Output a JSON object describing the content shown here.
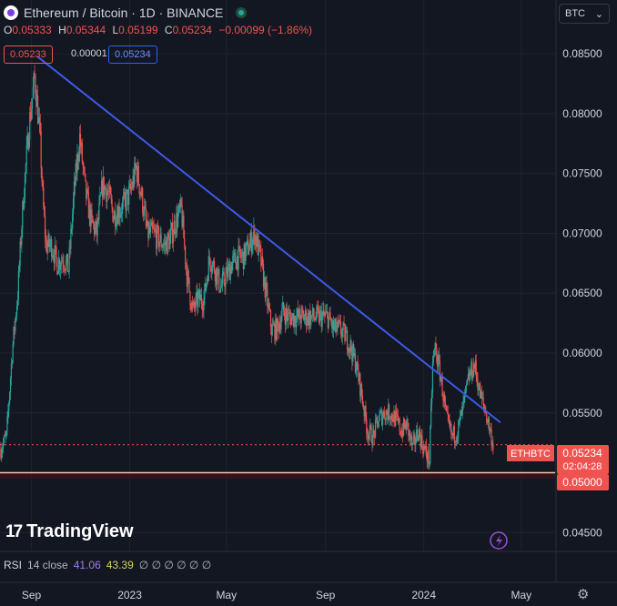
{
  "header": {
    "title": "Ethereum / Bitcoin · 1D · BINANCE",
    "ohlc": [
      {
        "key": "O",
        "value": "0.05333"
      },
      {
        "key": "H",
        "value": "0.05344"
      },
      {
        "key": "L",
        "value": "0.05199"
      },
      {
        "key": "C",
        "value": "0.05234"
      }
    ],
    "change": "−0.00099 (−1.86%)",
    "bid": "0.05233",
    "spread": "0.00001",
    "ask": "0.05234"
  },
  "currency_selector": {
    "value": "BTC",
    "arrow": "⌄"
  },
  "branding": {
    "mark": "17",
    "name": "TradingView"
  },
  "rsi": {
    "label": "RSI",
    "params": "14 close",
    "value1": "41.06",
    "value2": "43.39",
    "placeholders": "∅ ∅ ∅ ∅ ∅ ∅"
  },
  "price_tags": {
    "symbol": "ETHBTC",
    "last": "0.05234",
    "countdown": "02:04:28",
    "support": "0.05000"
  },
  "colors": {
    "background": "#131722",
    "up": "#26a69a",
    "down": "#ef5350",
    "trendline": "#3d5ae8",
    "support_line": "#f0c9a4",
    "axis_text": "#d1d4dc"
  },
  "icons": [
    "flash-icon",
    "gear-icon"
  ],
  "chart_data": {
    "type": "candlestick",
    "x_ticks": [
      "Sep",
      "2023",
      "May",
      "Sep",
      "2024",
      "May"
    ],
    "y_ticks": [
      "0.08500",
      "0.08000",
      "0.07500",
      "0.07000",
      "0.06500",
      "0.06000",
      "0.05500",
      "0.05000",
      "0.04500"
    ],
    "ylim": [
      0.0435,
      0.0895
    ],
    "xlim": [
      "2022-07-24",
      "2024-06-12"
    ],
    "grid": true,
    "series_close": [
      {
        "date": "2022-07-25",
        "close": 0.052
      },
      {
        "date": "2022-08-01",
        "close": 0.053
      },
      {
        "date": "2022-08-08",
        "close": 0.06
      },
      {
        "date": "2022-08-15",
        "close": 0.065
      },
      {
        "date": "2022-08-22",
        "close": 0.073
      },
      {
        "date": "2022-08-29",
        "close": 0.079
      },
      {
        "date": "2022-09-05",
        "close": 0.083
      },
      {
        "date": "2022-09-08",
        "close": 0.081
      },
      {
        "date": "2022-09-12",
        "close": 0.0775
      },
      {
        "date": "2022-09-15",
        "close": 0.073
      },
      {
        "date": "2022-09-19",
        "close": 0.069
      },
      {
        "date": "2022-09-26",
        "close": 0.069
      },
      {
        "date": "2022-10-03",
        "close": 0.0675
      },
      {
        "date": "2022-10-10",
        "close": 0.068
      },
      {
        "date": "2022-10-17",
        "close": 0.067
      },
      {
        "date": "2022-10-24",
        "close": 0.0735
      },
      {
        "date": "2022-10-31",
        "close": 0.078
      },
      {
        "date": "2022-11-07",
        "close": 0.0735
      },
      {
        "date": "2022-11-14",
        "close": 0.071
      },
      {
        "date": "2022-11-21",
        "close": 0.07
      },
      {
        "date": "2022-11-28",
        "close": 0.074
      },
      {
        "date": "2022-12-05",
        "close": 0.0735
      },
      {
        "date": "2022-12-12",
        "close": 0.0715
      },
      {
        "date": "2022-12-19",
        "close": 0.072
      },
      {
        "date": "2022-12-26",
        "close": 0.0725
      },
      {
        "date": "2023-01-02",
        "close": 0.0735
      },
      {
        "date": "2023-01-09",
        "close": 0.0755
      },
      {
        "date": "2023-01-16",
        "close": 0.073
      },
      {
        "date": "2023-01-23",
        "close": 0.07
      },
      {
        "date": "2023-01-30",
        "close": 0.07
      },
      {
        "date": "2023-02-06",
        "close": 0.0695
      },
      {
        "date": "2023-02-13",
        "close": 0.069
      },
      {
        "date": "2023-02-20",
        "close": 0.0695
      },
      {
        "date": "2023-02-27",
        "close": 0.071
      },
      {
        "date": "2023-03-06",
        "close": 0.072
      },
      {
        "date": "2023-03-13",
        "close": 0.0665
      },
      {
        "date": "2023-03-20",
        "close": 0.0635
      },
      {
        "date": "2023-03-27",
        "close": 0.0645
      },
      {
        "date": "2023-04-03",
        "close": 0.0645
      },
      {
        "date": "2023-04-10",
        "close": 0.068
      },
      {
        "date": "2023-04-17",
        "close": 0.067
      },
      {
        "date": "2023-04-24",
        "close": 0.0655
      },
      {
        "date": "2023-05-01",
        "close": 0.0665
      },
      {
        "date": "2023-05-08",
        "close": 0.0675
      },
      {
        "date": "2023-05-15",
        "close": 0.068
      },
      {
        "date": "2023-05-22",
        "close": 0.068
      },
      {
        "date": "2023-05-29",
        "close": 0.069
      },
      {
        "date": "2023-06-05",
        "close": 0.07
      },
      {
        "date": "2023-06-12",
        "close": 0.068
      },
      {
        "date": "2023-06-19",
        "close": 0.065
      },
      {
        "date": "2023-06-26",
        "close": 0.062
      },
      {
        "date": "2023-07-03",
        "close": 0.062
      },
      {
        "date": "2023-07-10",
        "close": 0.0635
      },
      {
        "date": "2023-07-17",
        "close": 0.063
      },
      {
        "date": "2023-07-24",
        "close": 0.063
      },
      {
        "date": "2023-07-31",
        "close": 0.063
      },
      {
        "date": "2023-08-07",
        "close": 0.063
      },
      {
        "date": "2023-08-14",
        "close": 0.063
      },
      {
        "date": "2023-08-21",
        "close": 0.063
      },
      {
        "date": "2023-08-28",
        "close": 0.063
      },
      {
        "date": "2023-09-04",
        "close": 0.063
      },
      {
        "date": "2023-09-11",
        "close": 0.062
      },
      {
        "date": "2023-09-18",
        "close": 0.062
      },
      {
        "date": "2023-09-25",
        "close": 0.0615
      },
      {
        "date": "2023-10-02",
        "close": 0.0605
      },
      {
        "date": "2023-10-09",
        "close": 0.059
      },
      {
        "date": "2023-10-16",
        "close": 0.0565
      },
      {
        "date": "2023-10-23",
        "close": 0.0535
      },
      {
        "date": "2023-10-30",
        "close": 0.053
      },
      {
        "date": "2023-11-06",
        "close": 0.0545
      },
      {
        "date": "2023-11-13",
        "close": 0.055
      },
      {
        "date": "2023-11-20",
        "close": 0.055
      },
      {
        "date": "2023-11-27",
        "close": 0.0545
      },
      {
        "date": "2023-12-04",
        "close": 0.0535
      },
      {
        "date": "2023-12-11",
        "close": 0.054
      },
      {
        "date": "2023-12-18",
        "close": 0.052
      },
      {
        "date": "2023-12-25",
        "close": 0.0535
      },
      {
        "date": "2024-01-01",
        "close": 0.052
      },
      {
        "date": "2024-01-08",
        "close": 0.051
      },
      {
        "date": "2024-01-12",
        "close": 0.059
      },
      {
        "date": "2024-01-15",
        "close": 0.0605
      },
      {
        "date": "2024-01-22",
        "close": 0.058
      },
      {
        "date": "2024-01-29",
        "close": 0.0545
      },
      {
        "date": "2024-02-05",
        "close": 0.053
      },
      {
        "date": "2024-02-12",
        "close": 0.0535
      },
      {
        "date": "2024-02-19",
        "close": 0.0555
      },
      {
        "date": "2024-02-26",
        "close": 0.058
      },
      {
        "date": "2024-03-04",
        "close": 0.059
      },
      {
        "date": "2024-03-11",
        "close": 0.0565
      },
      {
        "date": "2024-03-18",
        "close": 0.055
      },
      {
        "date": "2024-03-25",
        "close": 0.053
      },
      {
        "date": "2024-03-27",
        "close": 0.0523
      }
    ],
    "trendline": [
      {
        "date": "2022-09-08",
        "value": 0.0848
      },
      {
        "date": "2024-04-05",
        "value": 0.0542
      }
    ],
    "support_level": 0.05,
    "support_band": [
      0.0495,
      0.05
    ],
    "last_price": 0.05234,
    "rsi": [
      41.06,
      43.39
    ]
  }
}
